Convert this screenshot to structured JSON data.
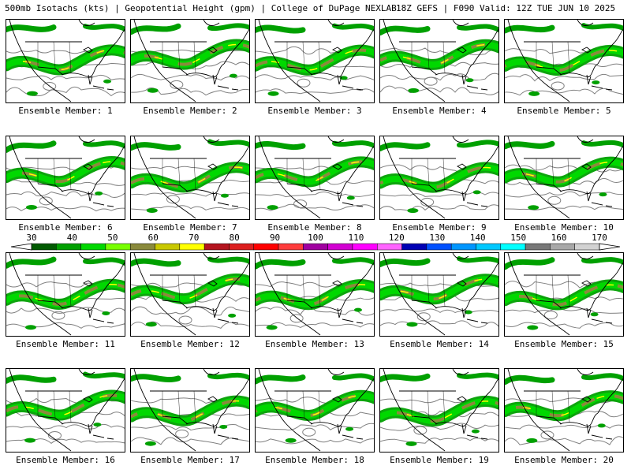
{
  "header": {
    "left_text": "500mb Isotachs (kts) | Geopotential Height (gpm) | College of DuPage NEXLAB",
    "right_text": "18Z GEFS | F090 Valid: 12Z TUE JUN 10 2025"
  },
  "colorbar": {
    "labels": [
      "30",
      "40",
      "50",
      "60",
      "70",
      "80",
      "90",
      "100",
      "110",
      "120",
      "130",
      "140",
      "150",
      "160",
      "170"
    ],
    "colors": [
      "#005a00",
      "#00a000",
      "#00d800",
      "#78ff00",
      "#8a8a3c",
      "#c8c800",
      "#ffff00",
      "#b4141e",
      "#dc1e1e",
      "#ff0000",
      "#ff3c3c",
      "#a000a0",
      "#d200d2",
      "#ff00ff",
      "#ff64ff",
      "#0000b4",
      "#0050ff",
      "#0096ff",
      "#00c8ff",
      "#00ffff",
      "#787878",
      "#a8a8a8",
      "#d2d2d2"
    ]
  },
  "map_colors": {
    "jet_low": "#00a000",
    "jet_mid": "#00d800",
    "jet_high": "#8a8a3c",
    "jet_core": "#ffff00",
    "jet_max": "#c83c1e",
    "height_contour": "#808080",
    "coastline": "#000000"
  },
  "members": [
    {
      "label": "Ensemble Member: 1"
    },
    {
      "label": "Ensemble Member: 2"
    },
    {
      "label": "Ensemble Member: 3"
    },
    {
      "label": "Ensemble Member: 4"
    },
    {
      "label": "Ensemble Member: 5"
    },
    {
      "label": "Ensemble Member: 6"
    },
    {
      "label": "Ensemble Member: 7"
    },
    {
      "label": "Ensemble Member: 8"
    },
    {
      "label": "Ensemble Member: 9"
    },
    {
      "label": "Ensemble Member: 10"
    },
    {
      "label": "Ensemble Member: 11"
    },
    {
      "label": "Ensemble Member: 12"
    },
    {
      "label": "Ensemble Member: 13"
    },
    {
      "label": "Ensemble Member: 14"
    },
    {
      "label": "Ensemble Member: 15"
    },
    {
      "label": "Ensemble Member: 16"
    },
    {
      "label": "Ensemble Member: 17"
    },
    {
      "label": "Ensemble Member: 18"
    },
    {
      "label": "Ensemble Member: 19"
    },
    {
      "label": "Ensemble Member: 20"
    }
  ]
}
